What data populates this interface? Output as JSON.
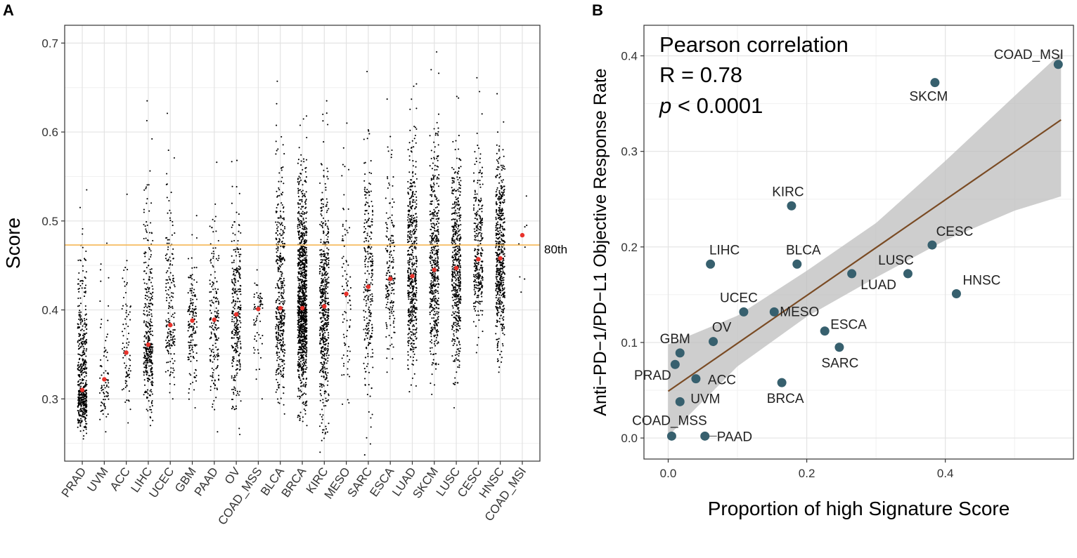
{
  "chart_data": [
    {
      "panel": "A",
      "type": "strip",
      "title": "",
      "xlabel": "",
      "ylabel": "Score",
      "ylim": [
        0.23,
        0.72
      ],
      "yticks": [
        0.3,
        0.4,
        0.5,
        0.6,
        0.7
      ],
      "ytick_labels": [
        "0.3",
        "0.4",
        "0.5",
        "0.6",
        "0.7"
      ],
      "grid": true,
      "reference_line": {
        "value": 0.473,
        "label": "80th",
        "color": "#f5b754"
      },
      "point_color": "#000000",
      "median_color": "#e8322b",
      "categories": [
        "PRAD",
        "UVM",
        "ACC",
        "LIHC",
        "UCEC",
        "GBM",
        "PAAD",
        "OV",
        "COAD_MSS",
        "BLCA",
        "BRCA",
        "KIRC",
        "MESO",
        "SARC",
        "ESCA",
        "LUAD",
        "SKCM",
        "LUSC",
        "CESC",
        "HNSC",
        "COAD_MSI"
      ],
      "groups": [
        {
          "name": "PRAD",
          "n": 500,
          "min": 0.255,
          "max": 0.535,
          "median": 0.31
        },
        {
          "name": "UVM",
          "n": 80,
          "min": 0.263,
          "max": 0.475,
          "median": 0.322
        },
        {
          "name": "ACC",
          "n": 79,
          "min": 0.273,
          "max": 0.53,
          "median": 0.352
        },
        {
          "name": "LIHC",
          "n": 370,
          "min": 0.27,
          "max": 0.635,
          "median": 0.361
        },
        {
          "name": "UCEC",
          "n": 180,
          "min": 0.3,
          "max": 0.621,
          "median": 0.383
        },
        {
          "name": "GBM",
          "n": 160,
          "min": 0.29,
          "max": 0.506,
          "median": 0.388
        },
        {
          "name": "PAAD",
          "n": 178,
          "min": 0.263,
          "max": 0.566,
          "median": 0.389
        },
        {
          "name": "OV",
          "n": 300,
          "min": 0.26,
          "max": 0.568,
          "median": 0.395
        },
        {
          "name": "COAD_MSS",
          "n": 60,
          "min": 0.3,
          "max": 0.445,
          "median": 0.401
        },
        {
          "name": "BLCA",
          "n": 400,
          "min": 0.283,
          "max": 0.657,
          "median": 0.402
        },
        {
          "name": "BRCA",
          "n": 1100,
          "min": 0.27,
          "max": 0.618,
          "median": 0.402
        },
        {
          "name": "KIRC",
          "n": 530,
          "min": 0.24,
          "max": 0.635,
          "median": 0.404
        },
        {
          "name": "MESO",
          "n": 87,
          "min": 0.294,
          "max": 0.61,
          "median": 0.418
        },
        {
          "name": "SARC",
          "n": 260,
          "min": 0.237,
          "max": 0.668,
          "median": 0.426
        },
        {
          "name": "ESCA",
          "n": 180,
          "min": 0.33,
          "max": 0.637,
          "median": 0.435
        },
        {
          "name": "LUAD",
          "n": 510,
          "min": 0.308,
          "max": 0.654,
          "median": 0.438
        },
        {
          "name": "SKCM",
          "n": 470,
          "min": 0.305,
          "max": 0.69,
          "median": 0.445
        },
        {
          "name": "LUSC",
          "n": 500,
          "min": 0.29,
          "max": 0.64,
          "median": 0.447
        },
        {
          "name": "CESC",
          "n": 300,
          "min": 0.352,
          "max": 0.661,
          "median": 0.457
        },
        {
          "name": "HNSC",
          "n": 520,
          "min": 0.33,
          "max": 0.643,
          "median": 0.458
        },
        {
          "name": "COAD_MSI",
          "n": 8,
          "min": 0.42,
          "max": 0.528,
          "median": 0.484
        }
      ]
    },
    {
      "panel": "B",
      "type": "scatter",
      "title": "",
      "xlabel": "Proportion of high Signature Score",
      "ylabel": "Anti−PD−1/PD−L1 Objective Response Rate",
      "xlim": [
        -0.035,
        0.585
      ],
      "ylim": [
        -0.022,
        0.432
      ],
      "xticks": [
        0.0,
        0.2,
        0.4
      ],
      "xtick_labels": [
        "0.0",
        "0.2",
        "0.4"
      ],
      "yticks": [
        0.0,
        0.1,
        0.2,
        0.3,
        0.4
      ],
      "ytick_labels": [
        "0.0",
        "0.1",
        "0.2",
        "0.3",
        "0.4"
      ],
      "grid": true,
      "point_color": "#37606e",
      "line_color": "#7a4b24",
      "band_color": "#bdbdbd",
      "annotation": {
        "line1": "Pearson correlation",
        "line2": "R = 0.78",
        "p_symbol": "p",
        "p_rest": " < 0.0001"
      },
      "regression": {
        "x": [
          0.0,
          0.567
        ],
        "y": [
          0.049,
          0.333
        ]
      },
      "confidence_band": {
        "x": [
          0.0,
          0.1,
          0.2,
          0.3,
          0.4,
          0.5,
          0.567
        ],
        "lower": [
          0.002,
          0.075,
          0.127,
          0.168,
          0.207,
          0.238,
          0.253
        ],
        "upper": [
          0.098,
          0.128,
          0.175,
          0.225,
          0.29,
          0.358,
          0.403
        ]
      },
      "points": [
        {
          "name": "COAD_MSI",
          "x": 0.563,
          "y": 0.391
        },
        {
          "name": "SKCM",
          "x": 0.385,
          "y": 0.372
        },
        {
          "name": "KIRC",
          "x": 0.178,
          "y": 0.243
        },
        {
          "name": "LIHC",
          "x": 0.061,
          "y": 0.182
        },
        {
          "name": "BLCA",
          "x": 0.186,
          "y": 0.182
        },
        {
          "name": "CESC",
          "x": 0.381,
          "y": 0.202
        },
        {
          "name": "LUSC",
          "x": 0.346,
          "y": 0.172
        },
        {
          "name": "LUAD",
          "x": 0.265,
          "y": 0.172
        },
        {
          "name": "HNSC",
          "x": 0.416,
          "y": 0.151
        },
        {
          "name": "UCEC",
          "x": 0.109,
          "y": 0.132
        },
        {
          "name": "MESO",
          "x": 0.153,
          "y": 0.132
        },
        {
          "name": "ESCA",
          "x": 0.226,
          "y": 0.112
        },
        {
          "name": "OV",
          "x": 0.065,
          "y": 0.101
        },
        {
          "name": "SARC",
          "x": 0.247,
          "y": 0.095
        },
        {
          "name": "GBM",
          "x": 0.017,
          "y": 0.089
        },
        {
          "name": "PRAD",
          "x": 0.01,
          "y": 0.077
        },
        {
          "name": "ACC",
          "x": 0.04,
          "y": 0.062
        },
        {
          "name": "BRCA",
          "x": 0.164,
          "y": 0.058
        },
        {
          "name": "UVM",
          "x": 0.017,
          "y": 0.038
        },
        {
          "name": "COAD_MSS",
          "x": 0.005,
          "y": 0.002
        },
        {
          "name": "PAAD",
          "x": 0.053,
          "y": 0.002
        }
      ]
    }
  ],
  "panel_labels": {
    "a": "A",
    "b": "B"
  }
}
